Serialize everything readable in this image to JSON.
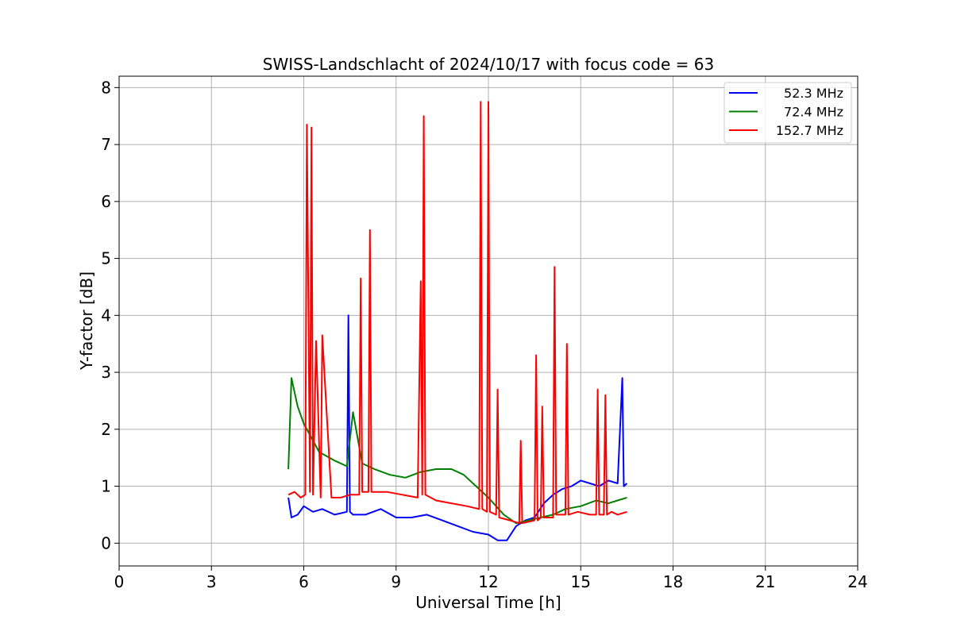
{
  "chart_data": {
    "type": "line",
    "title": "SWISS-Landschlacht of 2024/10/17 with focus code = 63",
    "xlabel": "Universal Time [h]",
    "ylabel": "Y-factor [dB]",
    "xlim": [
      0,
      24
    ],
    "ylim": [
      -0.4,
      8.2
    ],
    "xticks": [
      0,
      3,
      6,
      9,
      12,
      15,
      18,
      21,
      24
    ],
    "yticks": [
      0,
      1,
      2,
      3,
      4,
      5,
      6,
      7,
      8
    ],
    "grid": true,
    "legend_position": "top-right",
    "series": [
      {
        "name": "52.3 MHz",
        "color": "#0000ff",
        "x": [
          5.5,
          5.6,
          5.8,
          6.0,
          6.3,
          6.6,
          7.0,
          7.4,
          7.45,
          7.5,
          7.6,
          8.0,
          8.5,
          9.0,
          9.5,
          10.0,
          10.5,
          11.0,
          11.5,
          12.0,
          12.3,
          12.6,
          12.9,
          13.2,
          13.5,
          13.8,
          14.1,
          14.4,
          14.7,
          15.0,
          15.3,
          15.6,
          15.9,
          16.2,
          16.35,
          16.4,
          16.5
        ],
        "y": [
          0.8,
          0.45,
          0.5,
          0.65,
          0.55,
          0.6,
          0.5,
          0.55,
          4.0,
          0.55,
          0.5,
          0.5,
          0.6,
          0.45,
          0.45,
          0.5,
          0.4,
          0.3,
          0.2,
          0.15,
          0.05,
          0.05,
          0.3,
          0.4,
          0.45,
          0.7,
          0.85,
          0.95,
          1.0,
          1.1,
          1.05,
          1.0,
          1.1,
          1.05,
          2.9,
          1.0,
          1.05
        ]
      },
      {
        "name": "72.4 MHz",
        "color": "#008000",
        "x": [
          5.5,
          5.6,
          5.8,
          6.0,
          6.2,
          6.5,
          7.0,
          7.4,
          7.6,
          7.9,
          8.3,
          8.8,
          9.3,
          9.8,
          10.3,
          10.8,
          11.2,
          11.6,
          12.0,
          12.5,
          12.9,
          13.3,
          13.7,
          14.1,
          14.5,
          15.0,
          15.5,
          15.9,
          16.2,
          16.5
        ],
        "y": [
          1.3,
          2.9,
          2.4,
          2.1,
          1.9,
          1.6,
          1.45,
          1.35,
          2.3,
          1.4,
          1.3,
          1.2,
          1.15,
          1.25,
          1.3,
          1.3,
          1.2,
          1.0,
          0.8,
          0.5,
          0.35,
          0.4,
          0.45,
          0.5,
          0.6,
          0.65,
          0.75,
          0.7,
          0.75,
          0.8
        ]
      },
      {
        "name": "152.7 MHz",
        "color": "#ff0000",
        "x": [
          5.5,
          5.7,
          5.9,
          6.05,
          6.1,
          6.2,
          6.25,
          6.3,
          6.4,
          6.55,
          6.6,
          6.9,
          7.2,
          7.5,
          7.8,
          7.85,
          7.9,
          8.1,
          8.15,
          8.2,
          8.7,
          9.2,
          9.7,
          9.8,
          9.85,
          9.9,
          9.95,
          10.3,
          10.8,
          11.3,
          11.7,
          11.75,
          11.8,
          11.95,
          12.0,
          12.05,
          12.25,
          12.3,
          12.35,
          12.7,
          13.0,
          13.05,
          13.1,
          13.5,
          13.55,
          13.6,
          13.7,
          13.75,
          13.8,
          14.1,
          14.15,
          14.2,
          14.5,
          14.55,
          14.6,
          14.9,
          15.3,
          15.5,
          15.55,
          15.6,
          15.75,
          15.8,
          15.85,
          16.0,
          16.2,
          16.5
        ],
        "y": [
          0.85,
          0.9,
          0.8,
          0.85,
          7.35,
          0.9,
          7.3,
          0.85,
          3.55,
          0.8,
          3.65,
          0.8,
          0.8,
          0.85,
          0.85,
          4.65,
          0.9,
          0.9,
          5.5,
          0.9,
          0.9,
          0.85,
          0.8,
          4.6,
          0.85,
          7.5,
          0.85,
          0.75,
          0.7,
          0.65,
          0.6,
          7.75,
          0.6,
          0.55,
          7.75,
          0.55,
          0.5,
          2.7,
          0.45,
          0.4,
          0.35,
          1.8,
          0.35,
          0.4,
          3.3,
          0.4,
          0.45,
          2.4,
          0.45,
          0.45,
          4.85,
          0.5,
          0.5,
          3.5,
          0.5,
          0.55,
          0.5,
          0.5,
          2.7,
          0.5,
          0.5,
          2.6,
          0.5,
          0.55,
          0.5,
          0.55
        ]
      }
    ]
  }
}
